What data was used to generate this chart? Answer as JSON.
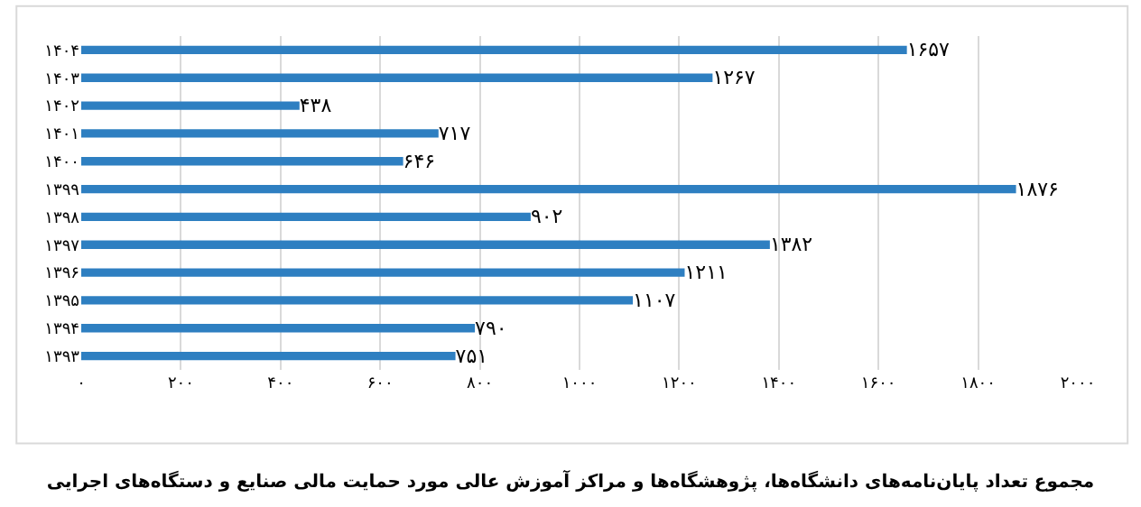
{
  "chart_data": {
    "type": "bar",
    "orientation": "horizontal",
    "title": "مجموع تعداد پایان‌نامه‌های دانشگاه‌ها، پژوهشگاه‌ها و مراکز آموزش عالی مورد حمایت مالی صنایع و دستگاه‌های اجرایی",
    "categories": [
      "۱۴۰۴",
      "۱۴۰۳",
      "۱۴۰۲",
      "۱۴۰۱",
      "۱۴۰۰",
      "۱۳۹۹",
      "۱۳۹۸",
      "۱۳۹۷",
      "۱۳۹۶",
      "۱۳۹۵",
      "۱۳۹۴",
      "۱۳۹۳"
    ],
    "values": [
      1657,
      1267,
      438,
      717,
      646,
      1876,
      902,
      1382,
      1211,
      1107,
      790,
      751
    ],
    "value_labels": [
      "۱۶۵۷",
      "۱۲۶۷",
      "۴۳۸",
      "۷۱۷",
      "۶۴۶",
      "۱۸۷۶",
      "۹۰۲",
      "۱۳۸۲",
      "۱۲۱۱",
      "۱۱۰۷",
      "۷۹۰",
      "۷۵۱"
    ],
    "color": "#2e7fc1",
    "xlim": [
      0,
      2000
    ],
    "xticks": [
      {
        "value": 0,
        "label": "۰"
      },
      {
        "value": 200,
        "label": "۲۰۰"
      },
      {
        "value": 400,
        "label": "۴۰۰"
      },
      {
        "value": 600,
        "label": "۶۰۰"
      },
      {
        "value": 800,
        "label": "۸۰۰"
      },
      {
        "value": 1000,
        "label": "۱۰۰۰"
      },
      {
        "value": 1200,
        "label": "۱۲۰۰"
      },
      {
        "value": 1400,
        "label": "۱۴۰۰"
      },
      {
        "value": 1600,
        "label": "۱۶۰۰"
      },
      {
        "value": 1800,
        "label": "۱۸۰۰"
      },
      {
        "value": 2000,
        "label": "۲۰۰۰"
      }
    ],
    "grid": "x"
  }
}
